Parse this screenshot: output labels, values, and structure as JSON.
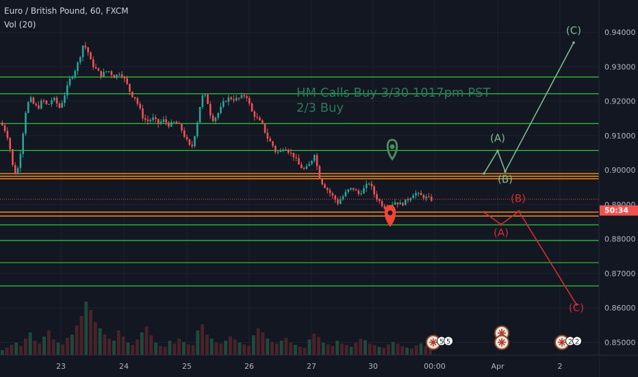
{
  "header": {
    "symbol_line": "Euro / British Pound, 60, FXCM",
    "volume_line": "Vol (20)"
  },
  "colors": {
    "background": "#131722",
    "up": "#26a69a",
    "down": "#ef5350",
    "green_level": "#2ecc40",
    "orange_level": "#e8841a",
    "price_line": "#ef5350",
    "bull_projection": "#7dbb8f",
    "bear_projection": "#d32f2f"
  },
  "chart_data": {
    "type": "candlestick",
    "title": "Euro / British Pound, 60, FXCM",
    "ylim": [
      0.8493,
      0.9428
    ],
    "yticks": [
      "0.85000",
      "0.86000",
      "0.87000",
      "0.88000",
      "0.89000",
      "0.90000",
      "0.91000",
      "0.92000",
      "0.93000",
      "0.94000"
    ],
    "xticks": [
      {
        "label": "23",
        "t": 89
      },
      {
        "label": "24",
        "t": 181
      },
      {
        "label": "25",
        "t": 273
      },
      {
        "label": "26",
        "t": 364
      },
      {
        "label": "27",
        "t": 455
      },
      {
        "label": "30",
        "t": 545
      },
      {
        "label": "00:00",
        "t": 635
      },
      {
        "label": "Apr",
        "t": 727
      },
      {
        "label": "2",
        "t": 818
      }
    ],
    "x_range": [
      0,
      875
    ],
    "price_path": [
      [
        2,
        0.9138
      ],
      [
        8,
        0.9125
      ],
      [
        15,
        0.909
      ],
      [
        22,
        0.9
      ],
      [
        27,
        0.8985
      ],
      [
        33,
        0.906
      ],
      [
        40,
        0.917
      ],
      [
        46,
        0.921
      ],
      [
        52,
        0.919
      ],
      [
        58,
        0.918
      ],
      [
        65,
        0.9205
      ],
      [
        72,
        0.9185
      ],
      [
        80,
        0.921
      ],
      [
        90,
        0.918
      ],
      [
        98,
        0.9225
      ],
      [
        105,
        0.9265
      ],
      [
        112,
        0.929
      ],
      [
        118,
        0.932
      ],
      [
        124,
        0.9365
      ],
      [
        130,
        0.935
      ],
      [
        136,
        0.931
      ],
      [
        142,
        0.9295
      ],
      [
        150,
        0.9275
      ],
      [
        160,
        0.929
      ],
      [
        170,
        0.927
      ],
      [
        178,
        0.9285
      ],
      [
        186,
        0.9258
      ],
      [
        194,
        0.922
      ],
      [
        200,
        0.921
      ],
      [
        206,
        0.918
      ],
      [
        212,
        0.915
      ],
      [
        218,
        0.9142
      ],
      [
        226,
        0.915
      ],
      [
        234,
        0.9135
      ],
      [
        242,
        0.9145
      ],
      [
        250,
        0.913
      ],
      [
        258,
        0.914
      ],
      [
        266,
        0.9125
      ],
      [
        274,
        0.909
      ],
      [
        282,
        0.906
      ],
      [
        289,
        0.912
      ],
      [
        295,
        0.919
      ],
      [
        300,
        0.9225
      ],
      [
        306,
        0.9195
      ],
      [
        312,
        0.9145
      ],
      [
        318,
        0.9155
      ],
      [
        324,
        0.9175
      ],
      [
        330,
        0.92
      ],
      [
        338,
        0.921
      ],
      [
        346,
        0.9205
      ],
      [
        354,
        0.921
      ],
      [
        362,
        0.922
      ],
      [
        370,
        0.917
      ],
      [
        378,
        0.915
      ],
      [
        386,
        0.913
      ],
      [
        394,
        0.909
      ],
      [
        400,
        0.9075
      ],
      [
        406,
        0.905
      ],
      [
        412,
        0.9055
      ],
      [
        418,
        0.907
      ],
      [
        424,
        0.9055
      ],
      [
        432,
        0.904
      ],
      [
        440,
        0.9012
      ],
      [
        448,
        0.9
      ],
      [
        456,
        0.902
      ],
      [
        462,
        0.905
      ],
      [
        468,
        0.8985
      ],
      [
        474,
        0.896
      ],
      [
        482,
        0.894
      ],
      [
        490,
        0.892
      ],
      [
        496,
        0.8905
      ],
      [
        502,
        0.892
      ],
      [
        510,
        0.894
      ],
      [
        518,
        0.8948
      ],
      [
        526,
        0.893
      ],
      [
        534,
        0.8945
      ],
      [
        542,
        0.8965
      ],
      [
        548,
        0.8935
      ],
      [
        554,
        0.8915
      ],
      [
        560,
        0.8902
      ],
      [
        566,
        0.889
      ],
      [
        572,
        0.8898
      ],
      [
        580,
        0.8908
      ],
      [
        588,
        0.89
      ],
      [
        596,
        0.891
      ],
      [
        602,
        0.8922
      ],
      [
        608,
        0.8935
      ],
      [
        614,
        0.8928
      ],
      [
        622,
        0.8922
      ],
      [
        632,
        0.8915
      ]
    ],
    "volume_heights": [
      12,
      18,
      25,
      30,
      22,
      40,
      55,
      35,
      28,
      45,
      60,
      38,
      30,
      26,
      42,
      50,
      72,
      95,
      130,
      110,
      80,
      65,
      50,
      40,
      35,
      60,
      45,
      30,
      25,
      38,
      55,
      70,
      48,
      30,
      22,
      20,
      35,
      28,
      40,
      32,
      26,
      24,
      60,
      75,
      50,
      40,
      30,
      28,
      35,
      45,
      38,
      30,
      26,
      22,
      48,
      65,
      55,
      40,
      32,
      28,
      35,
      42,
      30,
      25,
      20,
      18,
      38,
      52,
      44,
      30,
      26,
      22,
      35,
      28,
      24,
      20,
      30,
      40,
      36,
      28,
      24,
      20,
      18,
      26,
      32,
      28,
      22,
      18,
      16,
      24,
      28,
      22,
      18
    ],
    "volume_max": 200,
    "current_price": {
      "value": "0.89156",
      "y": 0.89156,
      "countdown": "50:34"
    },
    "green_levels": [
      {
        "label": "0.92701",
        "y": 0.92701
      },
      {
        "label": "0.92216",
        "y": 0.92216
      },
      {
        "label": "0.91350",
        "y": 0.9135
      },
      {
        "label": "0.90570",
        "y": 0.9057
      },
      {
        "label": "0.88411",
        "y": 0.88411
      },
      {
        "label": "0.87957",
        "y": 0.87957
      },
      {
        "label": "0.87314",
        "y": 0.87314
      },
      {
        "label": "0.86638",
        "y": 0.86638
      }
    ],
    "orange_levels": [
      {
        "label": "0.89898",
        "y": 0.89898
      },
      {
        "label": "0.89751",
        "y": 0.89751
      },
      {
        "label": "0.88666",
        "y": 0.88666
      }
    ],
    "orange_extra_lines": [
      0.8982,
      0.8878
    ],
    "annotation": {
      "text_line1": "HM Calls Buy 3/30 1017pm PST",
      "text_line2": "2/3 Buy",
      "t": 433,
      "y": 0.9216
    },
    "bull_projection": {
      "points": [
        [
          707,
          0.899
        ],
        [
          727,
          0.9056
        ],
        [
          738,
          0.8996
        ],
        [
          838,
          0.937
        ]
      ],
      "labels": [
        {
          "text": "(A)",
          "t": 727,
          "y": 0.9083
        },
        {
          "text": "(B)",
          "t": 738,
          "y": 0.8963
        },
        {
          "text": "(C)",
          "t": 838,
          "y": 0.9395
        }
      ]
    },
    "bear_projection": {
      "points": [
        [
          707,
          0.8878
        ],
        [
          732,
          0.8842
        ],
        [
          758,
          0.888
        ],
        [
          842,
          0.861
        ]
      ],
      "labels": [
        {
          "text": "(A)",
          "t": 732,
          "y": 0.8808
        },
        {
          "text": "(B)",
          "t": 757,
          "y": 0.8908
        },
        {
          "text": "(C)",
          "t": 842,
          "y": 0.859
        }
      ]
    },
    "markers": [
      {
        "kind": "pin",
        "color": "green",
        "t": 573,
        "y": 0.906
      },
      {
        "kind": "pin",
        "color": "red",
        "t": 570,
        "y": 0.8868
      }
    ],
    "event_badges": [
      {
        "t": 633,
        "y": 0.85,
        "count": "5"
      },
      {
        "t": 733,
        "y": 0.8527,
        "count": ""
      },
      {
        "t": 733,
        "y": 0.85,
        "count": ""
      },
      {
        "t": 821,
        "y": 0.85,
        "count": "2"
      }
    ]
  }
}
